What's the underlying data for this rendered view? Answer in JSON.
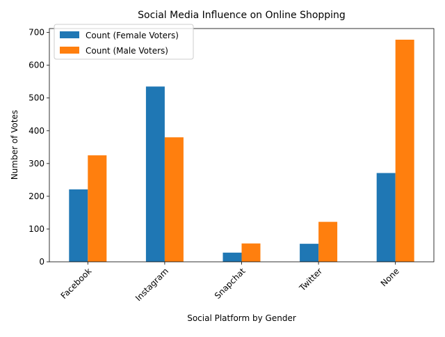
{
  "chart_data": {
    "type": "bar",
    "title": "Social Media Influence on Online Shopping",
    "xlabel": "Social Platform by Gender",
    "ylabel": "Number of Votes",
    "categories": [
      "Facebook",
      "Instagram",
      "Snapchat",
      "Twitter",
      "None"
    ],
    "series": [
      {
        "name": "Count (Female Voters)",
        "values": [
          221,
          535,
          28,
          55,
          271
        ],
        "color": "#1f77b4"
      },
      {
        "name": "Count (Male Voters)",
        "values": [
          325,
          380,
          56,
          122,
          678
        ],
        "color": "#ff7f0e"
      }
    ],
    "ylim": [
      0,
      712
    ],
    "yticks": [
      0,
      100,
      200,
      300,
      400,
      500,
      600,
      700
    ],
    "legend": "top-left",
    "grid": false
  }
}
